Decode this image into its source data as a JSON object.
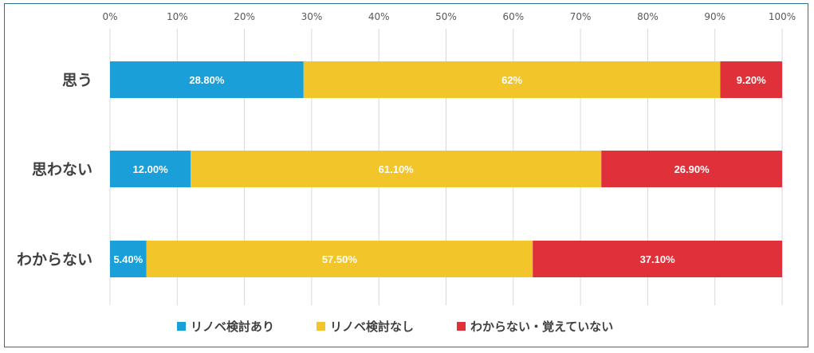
{
  "chart_data": {
    "type": "bar",
    "orientation": "horizontal",
    "stacked": true,
    "categories": [
      "思う",
      "思わない",
      "わからない"
    ],
    "series": [
      {
        "name": "リノベ検討あり",
        "color": "#1a9fd9",
        "values": [
          28.8,
          12.0,
          5.4
        ],
        "labels": [
          "28.80%",
          "12.00%",
          "5.40%"
        ]
      },
      {
        "name": "リノベ検討なし",
        "color": "#f2c52b",
        "values": [
          62.0,
          61.1,
          57.5
        ],
        "labels": [
          "62%",
          "61.10%",
          "57.50%"
        ]
      },
      {
        "name": "わからない・覚えていない",
        "color": "#e0313a",
        "values": [
          9.2,
          26.9,
          37.1
        ],
        "labels": [
          "9.20%",
          "26.90%",
          "37.10%"
        ]
      }
    ],
    "xlim": [
      0,
      100
    ],
    "xticks": [
      "0%",
      "10%",
      "20%",
      "30%",
      "40%",
      "50%",
      "60%",
      "70%",
      "80%",
      "90%",
      "100%"
    ],
    "grid": true,
    "legend": "bottom"
  }
}
